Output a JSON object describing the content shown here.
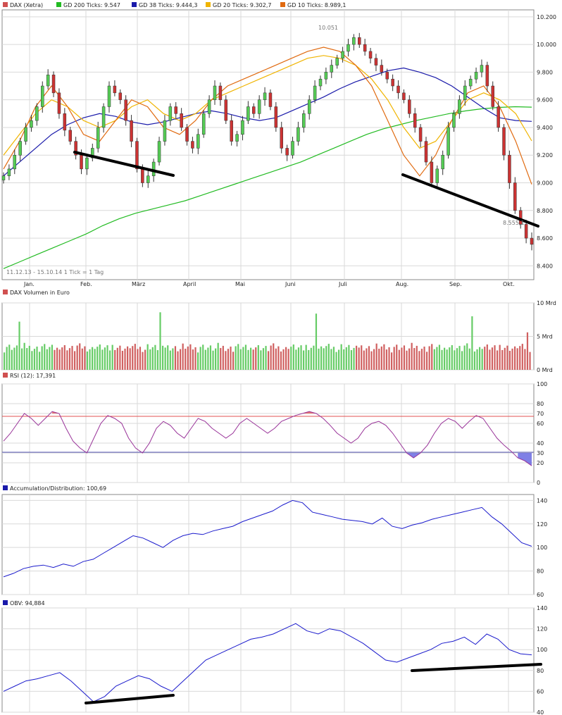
{
  "chart_data": [
    {
      "type": "candlestick",
      "title": "DAX (Xetra)",
      "legend": [
        {
          "label": "GD 200 Ticks: 9.547",
          "color": "#22bb22"
        },
        {
          "label": "GD 38 Ticks: 9.444,3",
          "color": "#1a1aaa"
        },
        {
          "label": "GD 20 Ticks: 9.302,7",
          "color": "#f0b400"
        },
        {
          "label": "GD 10 Ticks: 8.989,1",
          "color": "#e06a10"
        }
      ],
      "y_ticks": [
        "10.200",
        "10.000",
        "9.800",
        "9.600",
        "9.400",
        "9.200",
        "9.000",
        "8.800",
        "8.600",
        "8.400"
      ],
      "ylim": [
        8300,
        10250
      ],
      "x_ticks": [
        "Jan.",
        "Feb.",
        "März",
        "April",
        "Mai",
        "Juni",
        "Juli",
        "Aug.",
        "Sep.",
        "Okt."
      ],
      "footnote": "11.12.13 - 15.10.14   1 Tick = 1 Tag",
      "annotations": {
        "high": "10.051",
        "low": "8.555,1"
      },
      "close": [
        9050,
        9100,
        9200,
        9300,
        9400,
        9450,
        9550,
        9700,
        9780,
        9650,
        9500,
        9380,
        9300,
        9200,
        9100,
        9180,
        9250,
        9400,
        9550,
        9700,
        9650,
        9600,
        9450,
        9300,
        9100,
        9000,
        9050,
        9150,
        9300,
        9450,
        9550,
        9500,
        9400,
        9300,
        9250,
        9350,
        9500,
        9600,
        9700,
        9600,
        9450,
        9300,
        9350,
        9450,
        9550,
        9500,
        9600,
        9650,
        9550,
        9400,
        9250,
        9200,
        9300,
        9400,
        9500,
        9600,
        9700,
        9750,
        9800,
        9850,
        9900,
        9950,
        10000,
        10050,
        10000,
        9950,
        9900,
        9850,
        9800,
        9750,
        9700,
        9650,
        9600,
        9500,
        9400,
        9300,
        9150,
        9000,
        9100,
        9200,
        9400,
        9500,
        9600,
        9700,
        9750,
        9800,
        9850,
        9700,
        9550,
        9400,
        9200,
        9000,
        8800,
        8700,
        8600,
        8555
      ],
      "ma200": [
        8380,
        8430,
        8480,
        8530,
        8580,
        8630,
        8690,
        8740,
        8780,
        8810,
        8840,
        8870,
        8910,
        8950,
        8990,
        9030,
        9070,
        9110,
        9150,
        9200,
        9250,
        9300,
        9350,
        9390,
        9420,
        9450,
        9475,
        9500,
        9520,
        9535,
        9545,
        9550,
        9547
      ],
      "ma38": [
        9050,
        9150,
        9250,
        9350,
        9420,
        9470,
        9500,
        9480,
        9440,
        9420,
        9440,
        9470,
        9500,
        9520,
        9500,
        9470,
        9450,
        9470,
        9520,
        9570,
        9620,
        9680,
        9730,
        9770,
        9810,
        9830,
        9800,
        9760,
        9700,
        9620,
        9540,
        9470,
        9450,
        9444
      ],
      "ma20": [
        9200,
        9350,
        9500,
        9600,
        9550,
        9450,
        9400,
        9450,
        9550,
        9600,
        9500,
        9450,
        9500,
        9600,
        9650,
        9700,
        9750,
        9800,
        9850,
        9900,
        9920,
        9900,
        9850,
        9750,
        9600,
        9400,
        9250,
        9300,
        9450,
        9600,
        9650,
        9600,
        9500,
        9303
      ],
      "ma10": [
        9100,
        9300,
        9550,
        9700,
        9550,
        9350,
        9300,
        9450,
        9600,
        9550,
        9400,
        9350,
        9450,
        9600,
        9700,
        9750,
        9800,
        9850,
        9900,
        9950,
        9980,
        9950,
        9850,
        9700,
        9450,
        9200,
        9050,
        9200,
        9450,
        9650,
        9700,
        9550,
        9300,
        8989
      ]
    },
    {
      "type": "bar",
      "title": "DAX Volumen in Euro",
      "y_ticks": [
        "10 Mrd",
        "5 Mrd",
        "0 Mrd"
      ],
      "ylim": [
        0,
        10
      ]
    },
    {
      "type": "line",
      "title": "RSI (12): 17,391",
      "y_ticks": [
        "100",
        "80",
        "70",
        "60",
        "40",
        "30",
        "20",
        "0"
      ],
      "ylim": [
        0,
        100
      ],
      "levels": [
        70,
        30
      ],
      "values": [
        42,
        50,
        60,
        70,
        65,
        58,
        65,
        72,
        70,
        55,
        42,
        35,
        30,
        45,
        60,
        68,
        65,
        60,
        45,
        35,
        30,
        40,
        55,
        62,
        58,
        50,
        45,
        55,
        65,
        62,
        55,
        50,
        45,
        50,
        60,
        65,
        60,
        55,
        50,
        55,
        62,
        65,
        68,
        70,
        72,
        70,
        65,
        58,
        50,
        45,
        40,
        45,
        55,
        60,
        62,
        58,
        50,
        40,
        30,
        25,
        30,
        38,
        50,
        60,
        65,
        62,
        55,
        62,
        68,
        65,
        55,
        45,
        38,
        32,
        25,
        22,
        17
      ]
    },
    {
      "type": "line",
      "title": "Accumulation/Distribution: 100,69",
      "y_ticks": [
        "140",
        "120",
        "100",
        "80",
        "60"
      ],
      "ylim": [
        60,
        145
      ],
      "values": [
        75,
        78,
        82,
        84,
        85,
        83,
        86,
        84,
        88,
        90,
        95,
        100,
        105,
        110,
        108,
        104,
        100,
        106,
        110,
        112,
        111,
        114,
        116,
        118,
        122,
        125,
        128,
        131,
        136,
        140,
        138,
        130,
        128,
        126,
        124,
        123,
        122,
        120,
        125,
        118,
        116,
        119,
        121,
        124,
        126,
        128,
        130,
        132,
        134,
        126,
        120,
        112,
        104,
        101
      ]
    },
    {
      "type": "line",
      "title": "OBV: 94,884",
      "y_ticks": [
        "140",
        "120",
        "100",
        "80",
        "60",
        "40"
      ],
      "ylim": [
        40,
        140
      ],
      "values": [
        60,
        65,
        70,
        72,
        75,
        78,
        70,
        60,
        50,
        55,
        65,
        70,
        75,
        72,
        65,
        60,
        70,
        80,
        90,
        95,
        100,
        105,
        110,
        112,
        115,
        120,
        125,
        118,
        115,
        120,
        118,
        112,
        106,
        98,
        90,
        88,
        92,
        96,
        100,
        106,
        108,
        112,
        105,
        115,
        110,
        100,
        96,
        95
      ]
    }
  ]
}
